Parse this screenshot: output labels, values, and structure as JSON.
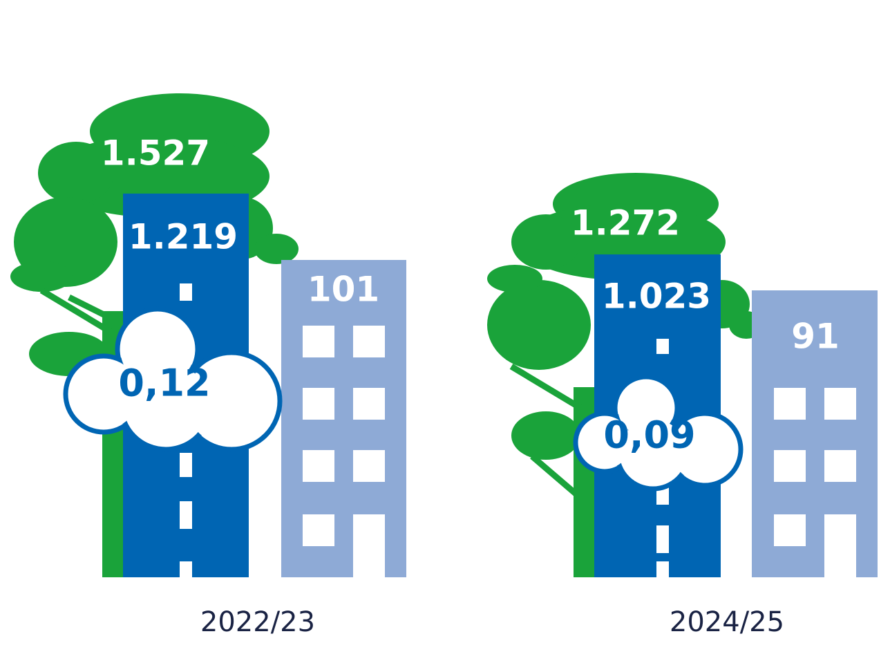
{
  "groups": [
    {
      "label": "2022/23",
      "tree": "1.527",
      "road": "1.219",
      "cloud": "0,12",
      "building": "101"
    },
    {
      "label": "2024/25",
      "tree": "1.272",
      "road": "1.023",
      "cloud": "0,09",
      "building": "91"
    }
  ]
}
